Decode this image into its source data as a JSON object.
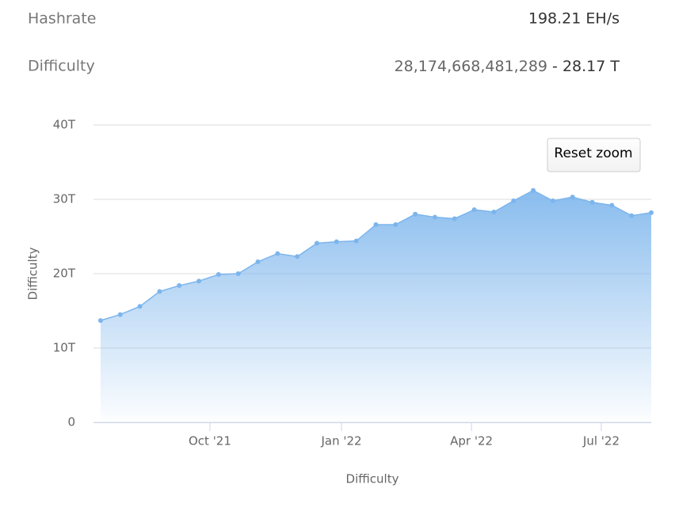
{
  "stats": [
    {
      "label": "Hashrate",
      "value": "198.21 EH/s"
    },
    {
      "label": "Difficulty",
      "value": "28,174,668,481,289",
      "separator": "-",
      "short": "28.17 T"
    }
  ],
  "reset_button": "Reset zoom",
  "chart_data": {
    "type": "area",
    "x_label": "Difficulty",
    "y_label": "Difficulty",
    "x": [
      0,
      1,
      2,
      3,
      4,
      5,
      6,
      7,
      8,
      9,
      10,
      11,
      12,
      13,
      14,
      15,
      16,
      17,
      18,
      19,
      20,
      21,
      22,
      23,
      24,
      25,
      26,
      27,
      28
    ],
    "series": [
      {
        "name": "Difficulty",
        "color": "#7cb5ec",
        "values": [
          13.7,
          14.5,
          15.6,
          17.6,
          18.4,
          19.0,
          19.9,
          20.0,
          21.6,
          22.7,
          22.3,
          24.1,
          24.3,
          24.4,
          26.6,
          26.6,
          28.0,
          27.6,
          27.4,
          28.6,
          28.3,
          29.8,
          31.2,
          29.8,
          30.3,
          29.6,
          29.2,
          27.8,
          28.2
        ]
      }
    ],
    "xlim": [
      -0.36,
      28
    ],
    "xticks": [
      {
        "value": 5.56,
        "label": "Oct '21"
      },
      {
        "value": 12.25,
        "label": "Jan '22"
      },
      {
        "value": 18.86,
        "label": "Apr '22"
      },
      {
        "value": 25.46,
        "label": "Jul '22"
      }
    ],
    "ylim": [
      0,
      40
    ],
    "yticks": [
      {
        "value": 0,
        "label": "0"
      },
      {
        "value": 10,
        "label": "10T"
      },
      {
        "value": 20,
        "label": "20T"
      },
      {
        "value": 30,
        "label": "30T"
      },
      {
        "value": 40,
        "label": "40T"
      }
    ],
    "grid": true
  }
}
